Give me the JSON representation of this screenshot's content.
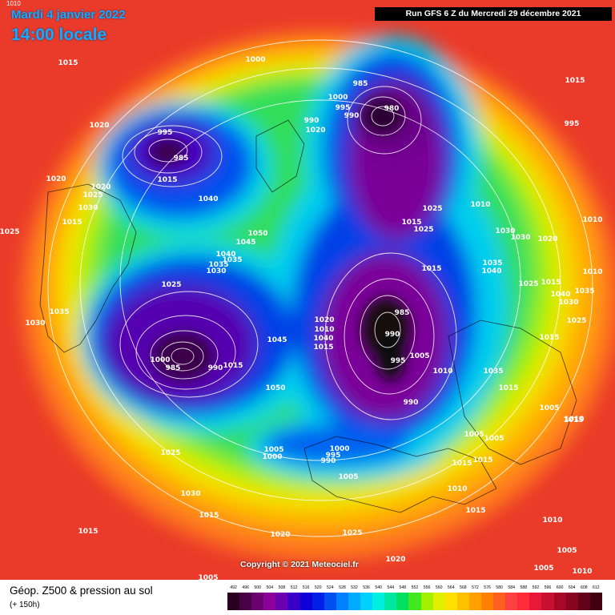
{
  "header": {
    "date": "Mardi 4 janvier 2022",
    "time": "14:00 locale",
    "run": "Run GFS 6 Z du Mercredi 29 décembre 2021",
    "corner": "1010"
  },
  "copyright": "Copyright © 2021 Meteociel.fr",
  "footer": {
    "title": "Géop. Z500 & pression au sol",
    "subtitle": "(+ 150h)"
  },
  "scale": {
    "labels": [
      "492",
      "496",
      "500",
      "504",
      "508",
      "512",
      "516",
      "520",
      "524",
      "528",
      "532",
      "536",
      "540",
      "544",
      "548",
      "552",
      "556",
      "560",
      "564",
      "568",
      "572",
      "576",
      "580",
      "584",
      "588",
      "592",
      "596",
      "600",
      "604",
      "608",
      "612"
    ],
    "colors": [
      "#2a0020",
      "#4a0045",
      "#6c0070",
      "#8a0098",
      "#6a00b0",
      "#3a00c8",
      "#1000d8",
      "#0020e8",
      "#0050f0",
      "#0080ff",
      "#00aaff",
      "#00d0ff",
      "#00f0e0",
      "#00e8a0",
      "#00e060",
      "#40e820",
      "#a0f000",
      "#e0f000",
      "#ffe000",
      "#ffc000",
      "#ffa000",
      "#ff8000",
      "#ff6020",
      "#ff4040",
      "#ff2a3a",
      "#e81838",
      "#c81030",
      "#a80828",
      "#880420",
      "#600218",
      "#400010"
    ]
  },
  "pressure_labels": [
    "1015",
    "1000",
    "990",
    "1020",
    "995",
    "985",
    "1000",
    "995",
    "990",
    "985",
    "980",
    "1015",
    "1020",
    "1025",
    "1020",
    "1015",
    "1030",
    "1035",
    "1030",
    "1025",
    "1015",
    "1010",
    "1010",
    "1035",
    "1030",
    "1030",
    "1025",
    "1040",
    "1050",
    "1045",
    "1040",
    "1035",
    "1030",
    "1025",
    "1000",
    "985",
    "990",
    "1015",
    "990",
    "1015",
    "1020",
    "1010",
    "995",
    "1000",
    "1005",
    "1000",
    "1005",
    "995",
    "990",
    "1005",
    "1015",
    "1025",
    "1030",
    "1015",
    "1015",
    "1020",
    "1025",
    "1040",
    "1045",
    "1050",
    "1035",
    "1040",
    "1035",
    "1015",
    "1015",
    "1005",
    "1010",
    "1010",
    "1005",
    "1015",
    "1010",
    "1015",
    "1010",
    "1020",
    "1005",
    "1025",
    "990",
    "985",
    "1015",
    "1040",
    "1035",
    "1025",
    "1005",
    "1010",
    "1015",
    "1015",
    "1010",
    "1005",
    "1015",
    "1020",
    "995",
    "1020",
    "1025",
    "1030",
    "1005",
    "1010"
  ],
  "colors": {
    "date_text": "#19a8ff",
    "run_bg": "#000000",
    "ocean_warm": "#ef3b2c",
    "yellow": "#f8e300",
    "green": "#2fe06a",
    "cyan": "#00d8f0",
    "blue": "#0838e8",
    "purple": "#7a0090",
    "dark_core": "#101010"
  }
}
